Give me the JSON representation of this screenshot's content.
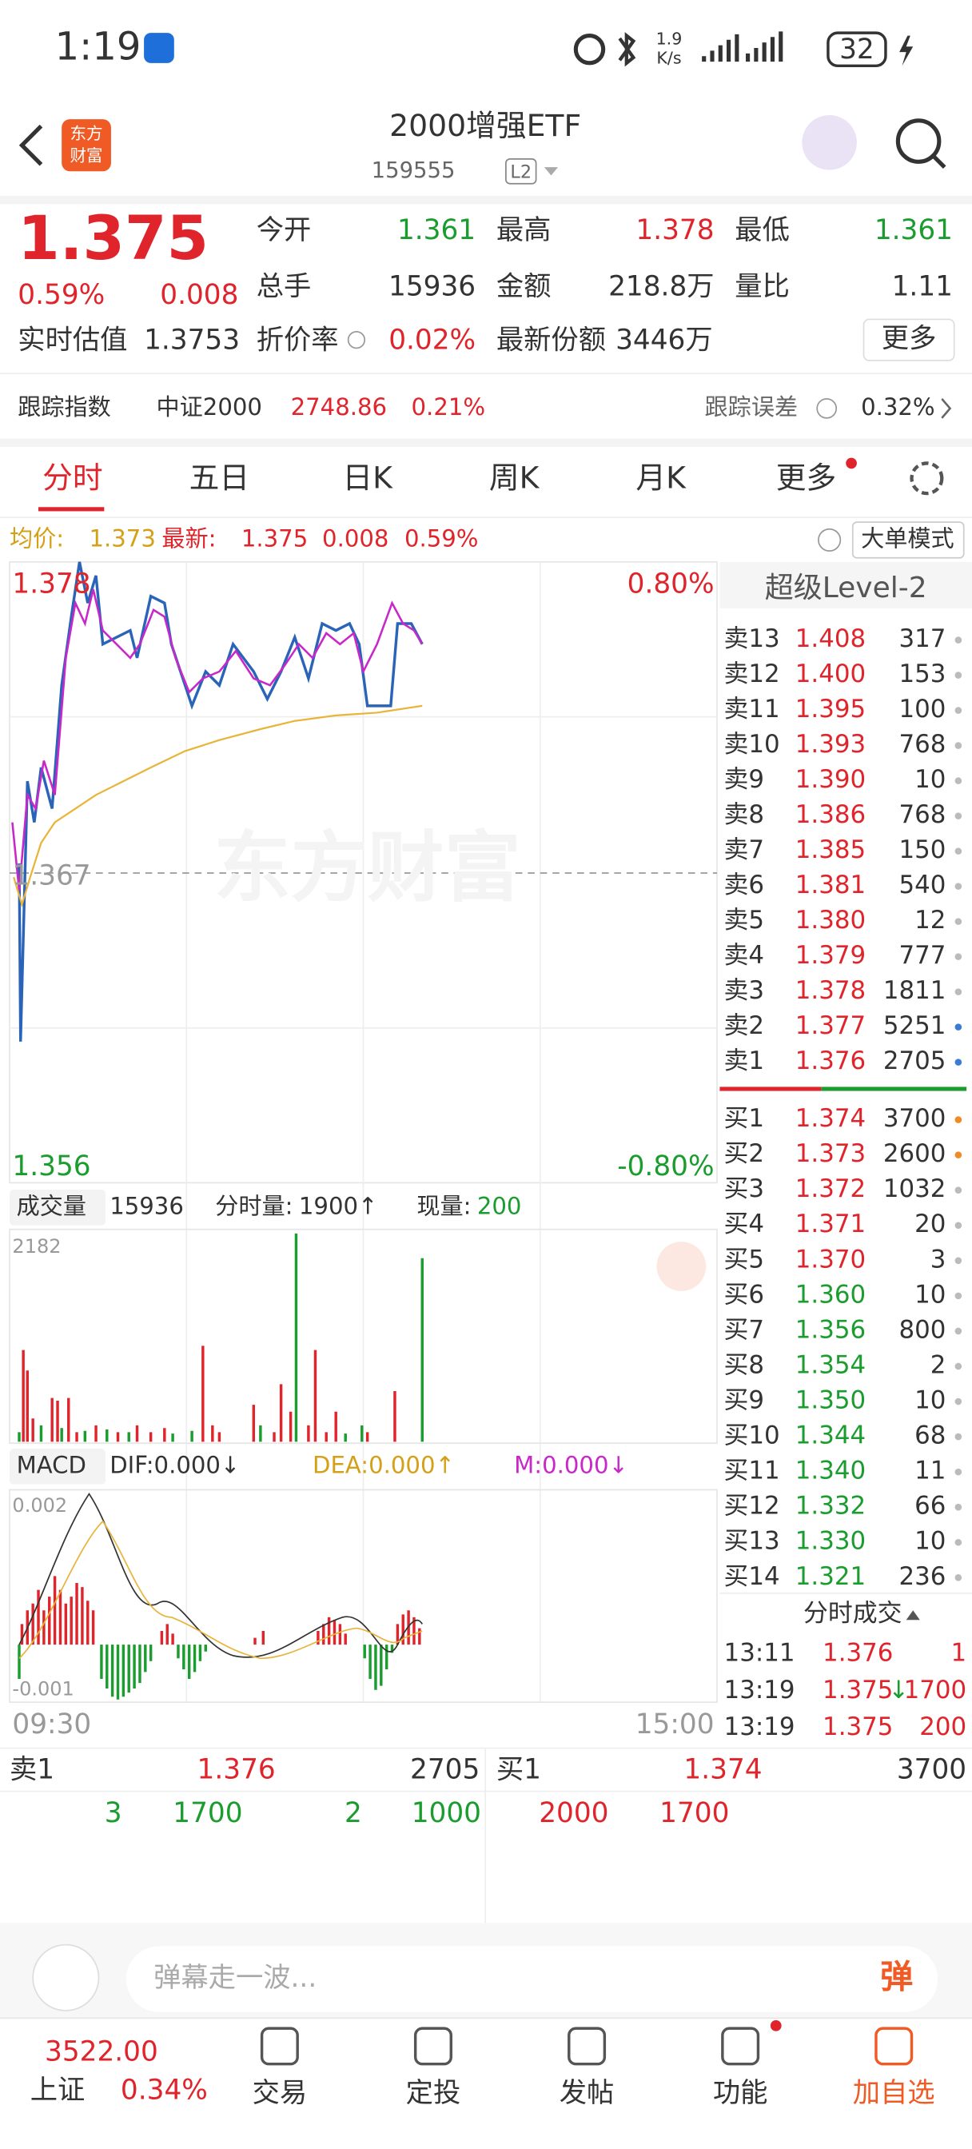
{
  "status_bar": {
    "time": "1:19",
    "net_speed": "1.9",
    "net_unit": "K/s",
    "battery": "32"
  },
  "header": {
    "logo_lines": [
      "东方",
      "财富"
    ],
    "title": "2000增强ETF",
    "code": "159555",
    "level": "L2"
  },
  "quote": {
    "price": "1.375",
    "change_pct": "0.59%",
    "change": "0.008",
    "stats": [
      {
        "label": "今开",
        "value": "1.361"
      },
      {
        "label": "最高",
        "value": "1.378"
      },
      {
        "label": "最低",
        "value": "1.361"
      },
      {
        "label": "总手",
        "value": "15936"
      },
      {
        "label": "金额",
        "value": "218.8万"
      },
      {
        "label": "量比",
        "value": "1.11"
      }
    ],
    "estimate_label": "实时估值",
    "estimate": "1.3753",
    "discount_label": "折价率",
    "discount": "0.02%",
    "shares_label": "最新份额",
    "shares": "3446万",
    "more": "更多"
  },
  "tracking": {
    "index_label": "跟踪指数",
    "index": "中证2000",
    "index_value": "2748.86",
    "index_change": "0.21%",
    "error_label": "跟踪误差",
    "error": "0.32%"
  },
  "tabs": [
    "分时",
    "五日",
    "日K",
    "周K",
    "月K",
    "更多"
  ],
  "info": {
    "avg_label": "均价:",
    "avg": "1.373",
    "last_label": "最新:",
    "last": "1.375",
    "change": "0.008",
    "change_pct": "0.59%",
    "mode": "大单模式"
  },
  "price_chart": {
    "high": "1.378",
    "high_pct": "0.80%",
    "mid": "1.367",
    "low": "1.356",
    "low_pct": "-0.80%",
    "watermark": "东方财富"
  },
  "volume": {
    "label": "成交量",
    "total": "15936",
    "minute_label": "分时量:",
    "minute": "1900↑",
    "now_label": "现量:",
    "now": "200",
    "max": "2182"
  },
  "macd": {
    "label": "MACD",
    "dif": "DIF:0.000↓",
    "dea": "DEA:0.000↑",
    "m": "M:0.000↓",
    "top": "0.002",
    "bottom": "-0.001"
  },
  "time_axis": [
    "09:30",
    "15:00"
  ],
  "level2": {
    "title": "超级Level-2",
    "asks": [
      {
        "label": "卖13",
        "price": "1.408",
        "volume": "317",
        "dot": "#bbb"
      },
      {
        "label": "卖12",
        "price": "1.400",
        "volume": "153",
        "dot": "#bbb"
      },
      {
        "label": "卖11",
        "price": "1.395",
        "volume": "100",
        "dot": "#bbb"
      },
      {
        "label": "卖10",
        "price": "1.393",
        "volume": "768",
        "dot": "#bbb"
      },
      {
        "label": "卖9",
        "price": "1.390",
        "volume": "10",
        "dot": "#bbb"
      },
      {
        "label": "卖8",
        "price": "1.386",
        "volume": "768",
        "dot": "#bbb"
      },
      {
        "label": "卖7",
        "price": "1.385",
        "volume": "150",
        "dot": "#bbb"
      },
      {
        "label": "卖6",
        "price": "1.381",
        "volume": "540",
        "dot": "#bbb"
      },
      {
        "label": "卖5",
        "price": "1.380",
        "volume": "12",
        "dot": "#bbb"
      },
      {
        "label": "卖4",
        "price": "1.379",
        "volume": "777",
        "dot": "#bbb"
      },
      {
        "label": "卖3",
        "price": "1.378",
        "volume": "1811",
        "dot": "#bbb"
      },
      {
        "label": "卖2",
        "price": "1.377",
        "volume": "5251",
        "dot": "#3a7bd5"
      },
      {
        "label": "卖1",
        "price": "1.376",
        "volume": "2705",
        "dot": "#3a7bd5"
      }
    ],
    "bids": [
      {
        "label": "买1",
        "price": "1.374",
        "volume": "3700",
        "dot": "#f08a24"
      },
      {
        "label": "买2",
        "price": "1.373",
        "volume": "2600",
        "dot": "#f08a24"
      },
      {
        "label": "买3",
        "price": "1.372",
        "volume": "1032",
        "dot": "#bbb"
      },
      {
        "label": "买4",
        "price": "1.371",
        "volume": "20",
        "dot": "#bbb"
      },
      {
        "label": "买5",
        "price": "1.370",
        "volume": "3",
        "dot": "#bbb"
      },
      {
        "label": "买6",
        "price": "1.360",
        "volume": "10",
        "dot": "#bbb"
      },
      {
        "label": "买7",
        "price": "1.356",
        "volume": "800",
        "dot": "#bbb"
      },
      {
        "label": "买8",
        "price": "1.354",
        "volume": "2",
        "dot": "#bbb"
      },
      {
        "label": "买9",
        "price": "1.350",
        "volume": "10",
        "dot": "#bbb"
      },
      {
        "label": "买10",
        "price": "1.344",
        "volume": "68",
        "dot": "#bbb"
      },
      {
        "label": "买11",
        "price": "1.340",
        "volume": "11",
        "dot": "#bbb"
      },
      {
        "label": "买12",
        "price": "1.332",
        "volume": "66",
        "dot": "#bbb"
      },
      {
        "label": "买13",
        "price": "1.330",
        "volume": "10",
        "dot": "#bbb"
      },
      {
        "label": "买14",
        "price": "1.321",
        "volume": "236",
        "dot": "#bbb"
      }
    ],
    "trades_title": "分时成交",
    "trades": [
      {
        "time": "13:11",
        "price": "1.376",
        "volume": "1"
      },
      {
        "time": "13:19",
        "price": "1.375",
        "arrow": "↓",
        "volume": "1700"
      },
      {
        "time": "13:19",
        "price": "1.375",
        "volume": "200"
      }
    ]
  },
  "order_row": {
    "ask_label": "卖1",
    "ask_price": "1.376",
    "ask_volume": "2705",
    "bid_label": "买1",
    "bid_price": "1.374",
    "bid_volume": "3700",
    "ask_orders": [
      "3",
      "1700",
      "2",
      "1000"
    ],
    "bid_orders": [
      "2000",
      "1700"
    ]
  },
  "comment": {
    "placeholder": "弹幕走一波...",
    "button": "弹"
  },
  "nav": {
    "index_value": "3522.00",
    "index_name": "上证",
    "index_change": "0.34%",
    "items": [
      "交易",
      "定投",
      "发帖",
      "功能",
      "加自选"
    ]
  }
}
